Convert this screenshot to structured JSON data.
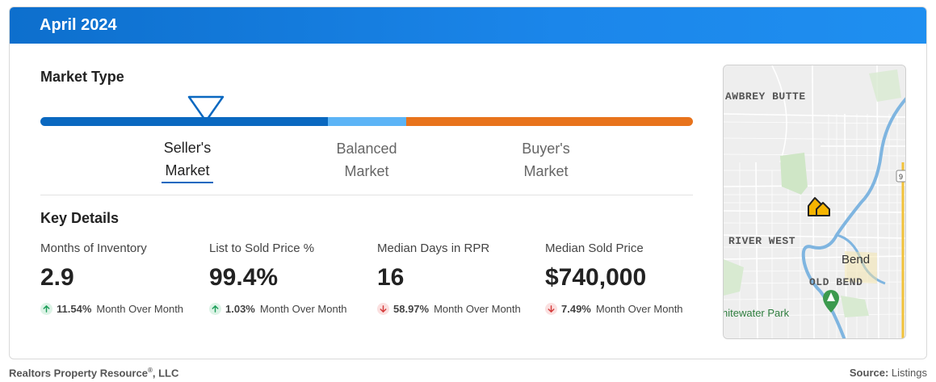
{
  "header": {
    "title": "April 2024"
  },
  "market_type": {
    "title": "Market Type",
    "labels": {
      "seller_line1": "Seller's",
      "seller_line2": "Market",
      "balanced_line1": "Balanced",
      "balanced_line2": "Market",
      "buyer_line1": "Buyer's",
      "buyer_line2": "Market"
    },
    "selected": "seller",
    "colors": {
      "seller": "#0a68c0",
      "balanced": "#5cb4f6",
      "buyer": "#e8731c"
    }
  },
  "key_details": {
    "title": "Key Details",
    "metrics": [
      {
        "name": "Months of Inventory",
        "value": "2.9",
        "direction": "up",
        "change": "11.54%",
        "period": "Month Over Month"
      },
      {
        "name": "List to Sold Price %",
        "value": "99.4%",
        "direction": "up",
        "change": "1.03%",
        "period": "Month Over Month"
      },
      {
        "name": "Median Days in RPR",
        "value": "16",
        "direction": "down",
        "change": "58.97%",
        "period": "Month Over Month"
      },
      {
        "name": "Median Sold Price",
        "value": "$740,000",
        "direction": "down",
        "change": "7.49%",
        "period": "Month Over Month"
      }
    ]
  },
  "map": {
    "labels": {
      "awbrey": "AWBREY BUTTE",
      "river_west": "RIVER WEST",
      "bend": "Bend",
      "old_bend": "OLD BEND",
      "park": "hitewater Park",
      "route": "9"
    },
    "marker_icon": "home-marker-icon",
    "park_icon": "tree-pin-icon"
  },
  "footer": {
    "company": "Realtors Property Resource",
    "reg": "®",
    "company_suffix": ", LLC",
    "source_label": "Source:",
    "source_value": "Listings"
  }
}
